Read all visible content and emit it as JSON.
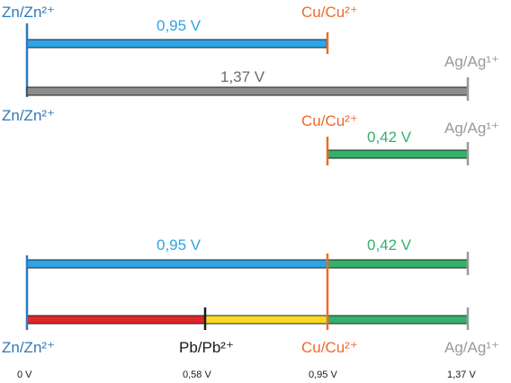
{
  "colors": {
    "zinc": "#2f7ab8",
    "copper": "#ee6a2b",
    "silver": "#9a9a9a",
    "lead": "#1a1a1a",
    "blue_bar": "#2ea4e6",
    "gray_bar": "#8c8c8c",
    "green_bar": "#33b06a",
    "red_bar": "#e1252b",
    "yellow_bar": "#f7db22",
    "bar_outline": "#222222"
  },
  "labels": {
    "zn": "Zn/Zn²⁺",
    "cu": "Cu/Cu²⁺",
    "ag": "Ag/Ag¹⁺",
    "pb": "Pb/Pb²⁺"
  },
  "voltages": {
    "zn_cu": "0,95 V",
    "zn_ag": "1,37 V",
    "cu_ag": "0,42 V"
  },
  "potentials": {
    "zn": "0 V",
    "pb": "0,58 V",
    "cu": "0,95 V",
    "ag": "1,37 V"
  },
  "values": {
    "zn": 0,
    "pb": 0.58,
    "cu": 0.95,
    "ag": 1.37
  }
}
